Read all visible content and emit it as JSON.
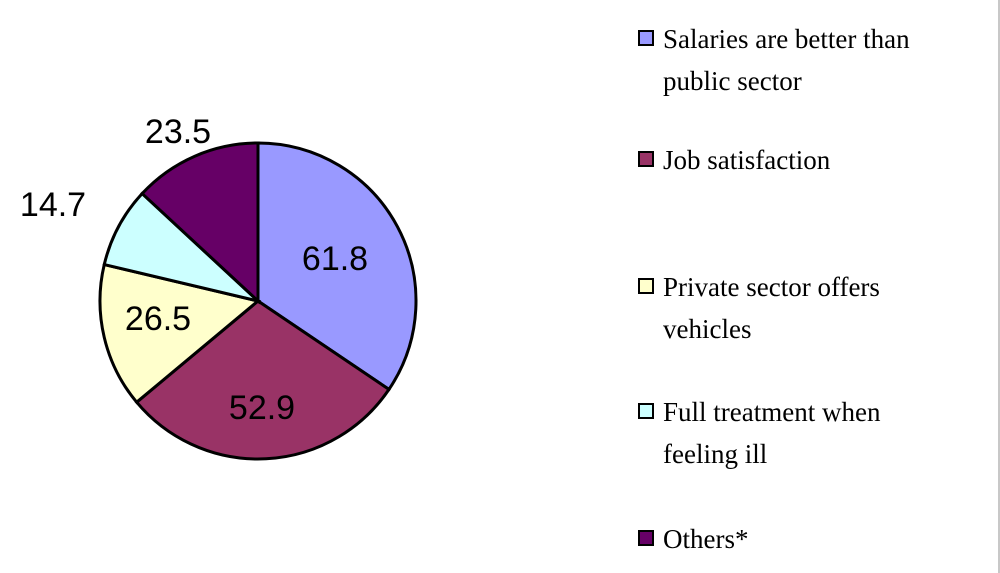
{
  "chart_data": {
    "type": "pie",
    "title": "",
    "categories": [
      "Salaries are better than public sector",
      "Job satisfaction",
      "Private sector offers vehicles",
      "Full treatment when feeling ill",
      "Others*"
    ],
    "values": [
      61.8,
      52.9,
      26.5,
      14.7,
      23.5
    ],
    "value_labels": [
      "61.8",
      "52.9",
      "26.5",
      "14.7",
      "23.5"
    ],
    "colors": [
      "#9999ff",
      "#993366",
      "#ffffcc",
      "#ccffff",
      "#660066"
    ],
    "legend_placement": "right",
    "grid": false
  },
  "legend": {
    "items": [
      {
        "line1": "Salaries are better than",
        "line2": "public sector",
        "color": "#9999ff"
      },
      {
        "line1": "Job satisfaction",
        "line2": "",
        "color": "#993366"
      },
      {
        "line1": "Private sector offers",
        "line2": "vehicles",
        "color": "#ffffcc"
      },
      {
        "line1": "Full treatment when",
        "line2": "feeling ill",
        "color": "#ccffff"
      },
      {
        "line1": "Others*",
        "line2": "",
        "color": "#660066"
      }
    ]
  }
}
